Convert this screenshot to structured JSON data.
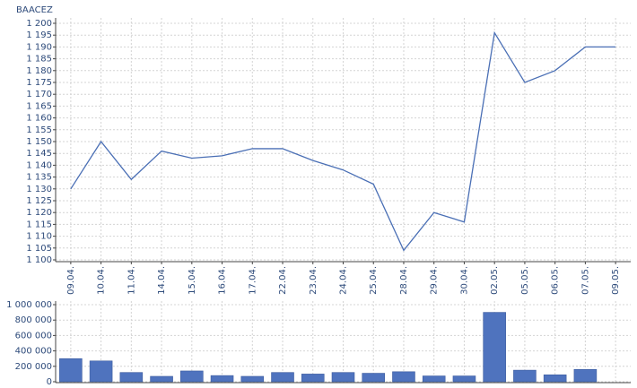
{
  "chart_data": [
    {
      "type": "line",
      "title": "BAACEZ",
      "categories": [
        "09.04.",
        "10.04.",
        "11.04.",
        "14.04.",
        "15.04.",
        "16.04.",
        "17.04.",
        "22.04.",
        "23.04.",
        "24.04.",
        "25.04.",
        "28.04.",
        "29.04.",
        "30.04.",
        "02.05.",
        "05.05.",
        "06.05.",
        "07.05.",
        "09.05."
      ],
      "series": [
        {
          "color": "#4a6fb5",
          "values": [
            1130,
            1150,
            1134,
            1146,
            1143,
            1144,
            1147,
            1147,
            1142,
            1138,
            1132,
            1104,
            1120,
            1116,
            1196,
            1175,
            1180,
            1190,
            1190
          ]
        }
      ],
      "ylim": [
        1100,
        1200
      ],
      "yticks": [
        {
          "value": 1100,
          "label": "1 100"
        },
        {
          "value": 1105,
          "label": "1 105"
        },
        {
          "value": 1110,
          "label": "1 110"
        },
        {
          "value": 1115,
          "label": "1 115"
        },
        {
          "value": 1120,
          "label": "1 120"
        },
        {
          "value": 1125,
          "label": "1 125"
        },
        {
          "value": 1130,
          "label": "1 130"
        },
        {
          "value": 1135,
          "label": "1 135"
        },
        {
          "value": 1140,
          "label": "1 140"
        },
        {
          "value": 1145,
          "label": "1 145"
        },
        {
          "value": 1150,
          "label": "1 150"
        },
        {
          "value": 1155,
          "label": "1 155"
        },
        {
          "value": 1160,
          "label": "1 160"
        },
        {
          "value": 1165,
          "label": "1 165"
        },
        {
          "value": 1170,
          "label": "1 170"
        },
        {
          "value": 1175,
          "label": "1 175"
        },
        {
          "value": 1180,
          "label": "1 180"
        },
        {
          "value": 1185,
          "label": "1 185"
        },
        {
          "value": 1190,
          "label": "1 190"
        },
        {
          "value": 1195,
          "label": "1 195"
        },
        {
          "value": 1200,
          "label": "1 200"
        }
      ],
      "grid": true
    },
    {
      "type": "bar",
      "series": [
        {
          "color": "#4f73be",
          "values": [
            300000,
            270000,
            120000,
            70000,
            140000,
            80000,
            70000,
            120000,
            100000,
            120000,
            110000,
            130000,
            75000,
            75000,
            900000,
            150000,
            90000,
            160000,
            null
          ]
        }
      ],
      "ylim": [
        0,
        1000000
      ],
      "yticks": [
        0,
        {
          "value": 200000,
          "label": "200 000"
        },
        {
          "value": 400000,
          "label": "400 000"
        },
        {
          "value": 600000,
          "label": "600 000"
        },
        {
          "value": 800000,
          "label": "800 000"
        },
        {
          "value": 1000000,
          "label": "1 000 000"
        }
      ],
      "grid": true
    }
  ]
}
